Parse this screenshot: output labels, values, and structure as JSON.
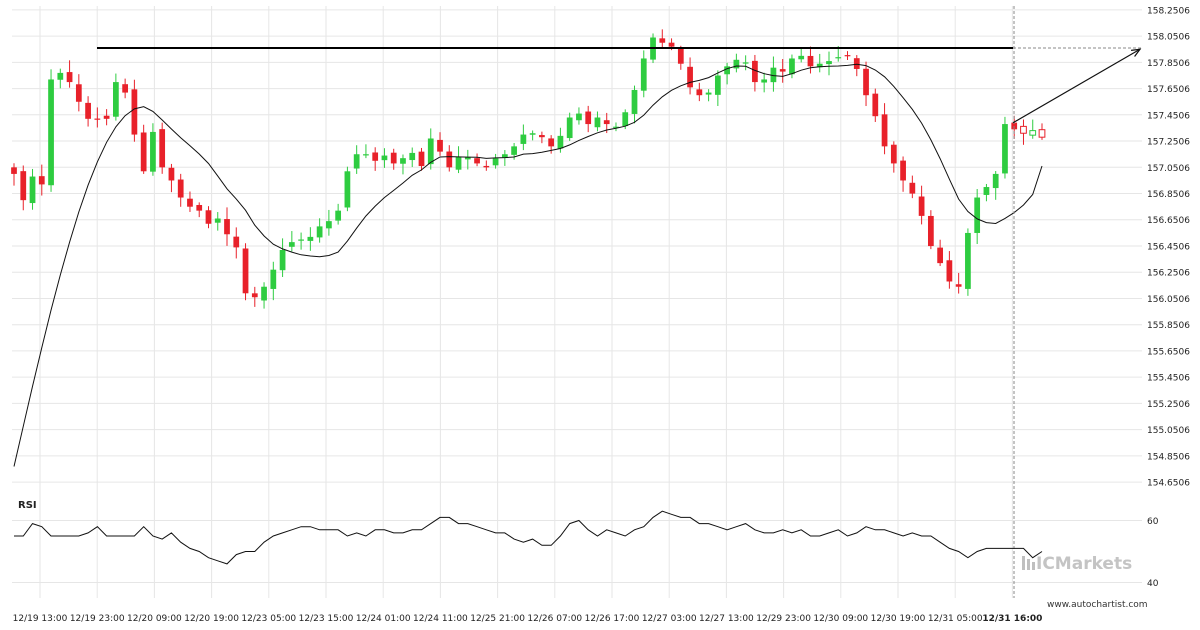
{
  "chart_data": {
    "type": "candlestick",
    "y_axis": {
      "ticks": [
        "158.2506",
        "158.0506",
        "157.8506",
        "157.6506",
        "157.4506",
        "157.2506",
        "157.0506",
        "156.8506",
        "156.6506",
        "156.4506",
        "156.2506",
        "156.0506",
        "155.8506",
        "155.6506",
        "155.4506",
        "155.2506",
        "155.0506",
        "154.8506",
        "154.6506"
      ],
      "range": [
        154.56,
        158.28
      ]
    },
    "x_axis": {
      "ticks": [
        "12/19 13:00",
        "12/19 23:00",
        "12/20 09:00",
        "12/20 19:00",
        "12/23 05:00",
        "12/23 15:00",
        "12/24 01:00",
        "12/24 11:00",
        "12/25 21:00",
        "12/26 07:00",
        "12/26 17:00",
        "12/27 03:00",
        "12/27 13:00",
        "12/29 23:00",
        "12/30 09:00",
        "12/30 19:00",
        "12/31 05:00",
        "12/31 16:00"
      ],
      "highlighted_tick": "12/31 16:00"
    },
    "candles_close": [
      157.0,
      156.8,
      156.98,
      156.92,
      157.72,
      157.77,
      157.7,
      157.55,
      157.42,
      157.42,
      157.42,
      157.7,
      157.62,
      157.3,
      157.02,
      157.32,
      157.05,
      156.95,
      156.82,
      156.75,
      156.72,
      156.62,
      156.66,
      156.54,
      156.44,
      156.09,
      156.06,
      156.14,
      156.27,
      156.42,
      156.48,
      156.5,
      156.52,
      156.6,
      156.64,
      156.72,
      157.02,
      157.15,
      157.15,
      157.1,
      157.14,
      157.08,
      157.12,
      157.16,
      157.06,
      157.27,
      157.17,
      157.05,
      157.13,
      157.13,
      157.08,
      157.05,
      157.12,
      157.15,
      157.21,
      157.3,
      157.31,
      157.28,
      157.21,
      157.29,
      157.43,
      157.46,
      157.38,
      157.43,
      157.38,
      157.36,
      157.47,
      157.64,
      157.88,
      158.04,
      158.0,
      157.97,
      157.84,
      157.66,
      157.6,
      157.62,
      157.75,
      157.82,
      157.87,
      157.85,
      157.7,
      157.72,
      157.81,
      157.78,
      157.88,
      157.9,
      157.82,
      157.84,
      157.86,
      157.89,
      157.9,
      157.8,
      157.6,
      157.44,
      157.21,
      157.08,
      156.95,
      156.85,
      156.68,
      156.45,
      156.32,
      156.18,
      156.14,
      156.55,
      156.82,
      156.9,
      157.0,
      157.38,
      157.34,
      157.31,
      157.33,
      157.28
    ],
    "support_resistance_level": 157.96,
    "projection": {
      "from": 157.39,
      "to": 157.95
    },
    "moving_average_end": 157.06,
    "rsi": {
      "label": "RSI",
      "ticks": [
        "60",
        "40"
      ],
      "range": [
        35,
        65
      ],
      "values": [
        55,
        55,
        59,
        58,
        55,
        55,
        55,
        55,
        56,
        58,
        55,
        55,
        55,
        55,
        58,
        55,
        54,
        56,
        53,
        51,
        50,
        48,
        47,
        46,
        49,
        50,
        50,
        53,
        55,
        56,
        57,
        58,
        58,
        57,
        57,
        57,
        55,
        56,
        55,
        57,
        57,
        56,
        56,
        57,
        57,
        59,
        61,
        61,
        59,
        59,
        58,
        57,
        56,
        56,
        54,
        53,
        54,
        52,
        52,
        55,
        59,
        60,
        57,
        55,
        57,
        56,
        55,
        57,
        58,
        61,
        63,
        62,
        61,
        61,
        59,
        59,
        58,
        57,
        58,
        59,
        57,
        56,
        56,
        57,
        56,
        57,
        55,
        55,
        56,
        57,
        55,
        56,
        58,
        57,
        57,
        56,
        55,
        56,
        55,
        55,
        53,
        51,
        50,
        48,
        50,
        51,
        51,
        51,
        51,
        51,
        48,
        50
      ]
    }
  },
  "branding": {
    "logo_text": "ICMarkets",
    "website": "www.autochartist.com"
  },
  "colors": {
    "bull": "#2ecc40",
    "bear": "#e8212a",
    "grid": "#e6e6e6",
    "level": "#000000",
    "text": "#222222"
  }
}
